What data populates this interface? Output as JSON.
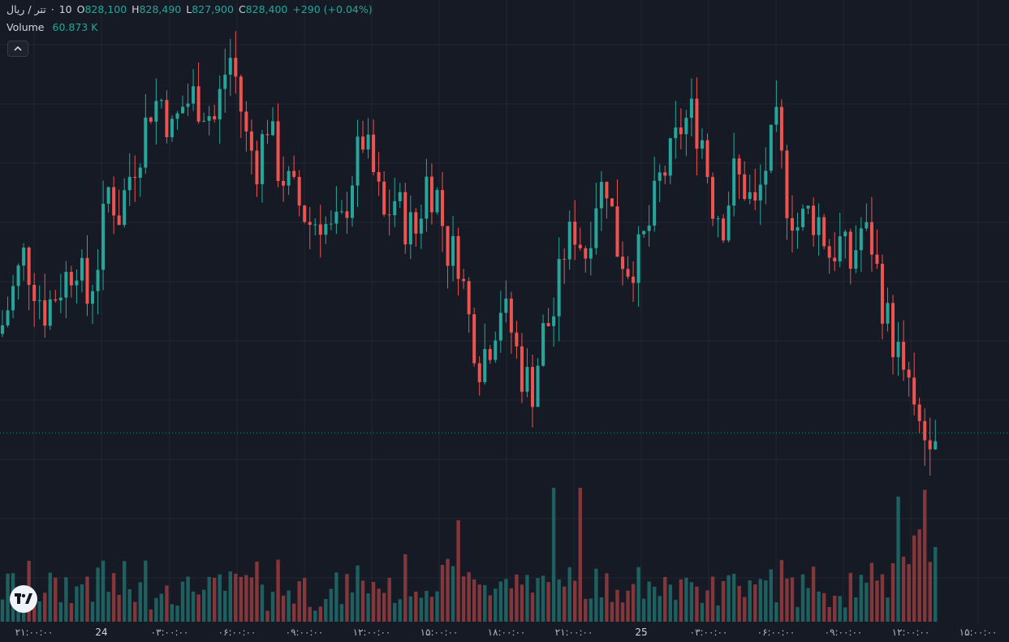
{
  "legend": {
    "symbol": "تتر / ریال",
    "interval": "10",
    "separator": "·",
    "open_label": "O",
    "open": "828,100",
    "high_label": "H",
    "high": "828,490",
    "low_label": "L",
    "low": "827,900",
    "close_label": "C",
    "close": "828,400",
    "change": "+290 (+0.04%)"
  },
  "volume": {
    "label": "Volume",
    "value": "60.873 K"
  },
  "colors": {
    "up": "#26a69a",
    "down": "#ef5350",
    "background": "#161a25",
    "grid": "#232632"
  },
  "icons": {
    "collapse": "chevron-up-icon",
    "logo": "tradingview-logo"
  },
  "chart_data": {
    "type": "candlestick",
    "interval": "10",
    "grid": true,
    "last_close": 828400,
    "x_ticks": [
      "۲۱:۰۰:۰۰",
      "24",
      "۰۳:۰۰:۰۰",
      "۰۶:۰۰:۰۰",
      "۰۹:۰۰:۰۰",
      "۱۲:۰۰:۰۰",
      "۱۵:۰۰:۰۰",
      "۱۸:۰۰:۰۰",
      "۲۱:۰۰:۰۰",
      "25",
      "۰۳:۰۰:۰۰",
      "۰۶:۰۰:۰۰",
      "۰۹:۰۰:۰۰",
      "۱۲:۰۰:۰۰",
      "۱۵:۰۰:۰۰"
    ],
    "close_path": [
      [
        0,
        832000
      ],
      [
        4,
        834300
      ],
      [
        8,
        832500
      ],
      [
        12,
        833600
      ],
      [
        14,
        834200
      ],
      [
        16,
        832800
      ],
      [
        18,
        834200
      ],
      [
        20,
        836500
      ],
      [
        22,
        835700
      ],
      [
        24,
        837000
      ],
      [
        26,
        838000
      ],
      [
        28,
        839300
      ],
      [
        30,
        839500
      ],
      [
        32,
        838400
      ],
      [
        34,
        839300
      ],
      [
        36,
        839600
      ],
      [
        38,
        839300
      ],
      [
        40,
        838800
      ],
      [
        42,
        840400
      ],
      [
        43,
        840900
      ],
      [
        44,
        840200
      ],
      [
        46,
        838200
      ],
      [
        48,
        837400
      ],
      [
        50,
        838800
      ],
      [
        52,
        837300
      ],
      [
        54,
        836600
      ],
      [
        56,
        836000
      ],
      [
        58,
        835400
      ],
      [
        60,
        835600
      ],
      [
        62,
        835000
      ],
      [
        64,
        835300
      ],
      [
        66,
        837000
      ],
      [
        68,
        838200
      ],
      [
        70,
        837000
      ],
      [
        72,
        835500
      ],
      [
        74,
        836200
      ],
      [
        76,
        835400
      ],
      [
        78,
        835100
      ],
      [
        80,
        836800
      ],
      [
        82,
        836300
      ],
      [
        84,
        834500
      ],
      [
        86,
        834300
      ],
      [
        88,
        832200
      ],
      [
        90,
        830800
      ],
      [
        92,
        831500
      ],
      [
        94,
        832700
      ],
      [
        96,
        831800
      ],
      [
        98,
        830400
      ],
      [
        100,
        829900
      ],
      [
        102,
        831700
      ],
      [
        104,
        832400
      ],
      [
        106,
        834500
      ],
      [
        108,
        835200
      ],
      [
        110,
        834400
      ],
      [
        112,
        836300
      ],
      [
        114,
        836800
      ],
      [
        116,
        834600
      ],
      [
        118,
        834000
      ],
      [
        120,
        834300
      ],
      [
        122,
        835300
      ],
      [
        124,
        836800
      ],
      [
        126,
        837500
      ],
      [
        128,
        838600
      ],
      [
        130,
        839000
      ],
      [
        132,
        838200
      ],
      [
        134,
        836100
      ],
      [
        136,
        835500
      ],
      [
        138,
        837000
      ],
      [
        140,
        836600
      ],
      [
        142,
        835800
      ],
      [
        144,
        837300
      ],
      [
        146,
        838500
      ],
      [
        148,
        836200
      ],
      [
        150,
        835300
      ],
      [
        152,
        835700
      ],
      [
        154,
        835500
      ],
      [
        156,
        834400
      ],
      [
        158,
        834700
      ],
      [
        160,
        834000
      ],
      [
        162,
        835200
      ],
      [
        164,
        834700
      ],
      [
        166,
        832800
      ],
      [
        168,
        831500
      ],
      [
        170,
        830500
      ],
      [
        172,
        828900
      ],
      [
        174,
        828300
      ],
      [
        176,
        828900
      ]
    ],
    "candle_count": 177
  }
}
